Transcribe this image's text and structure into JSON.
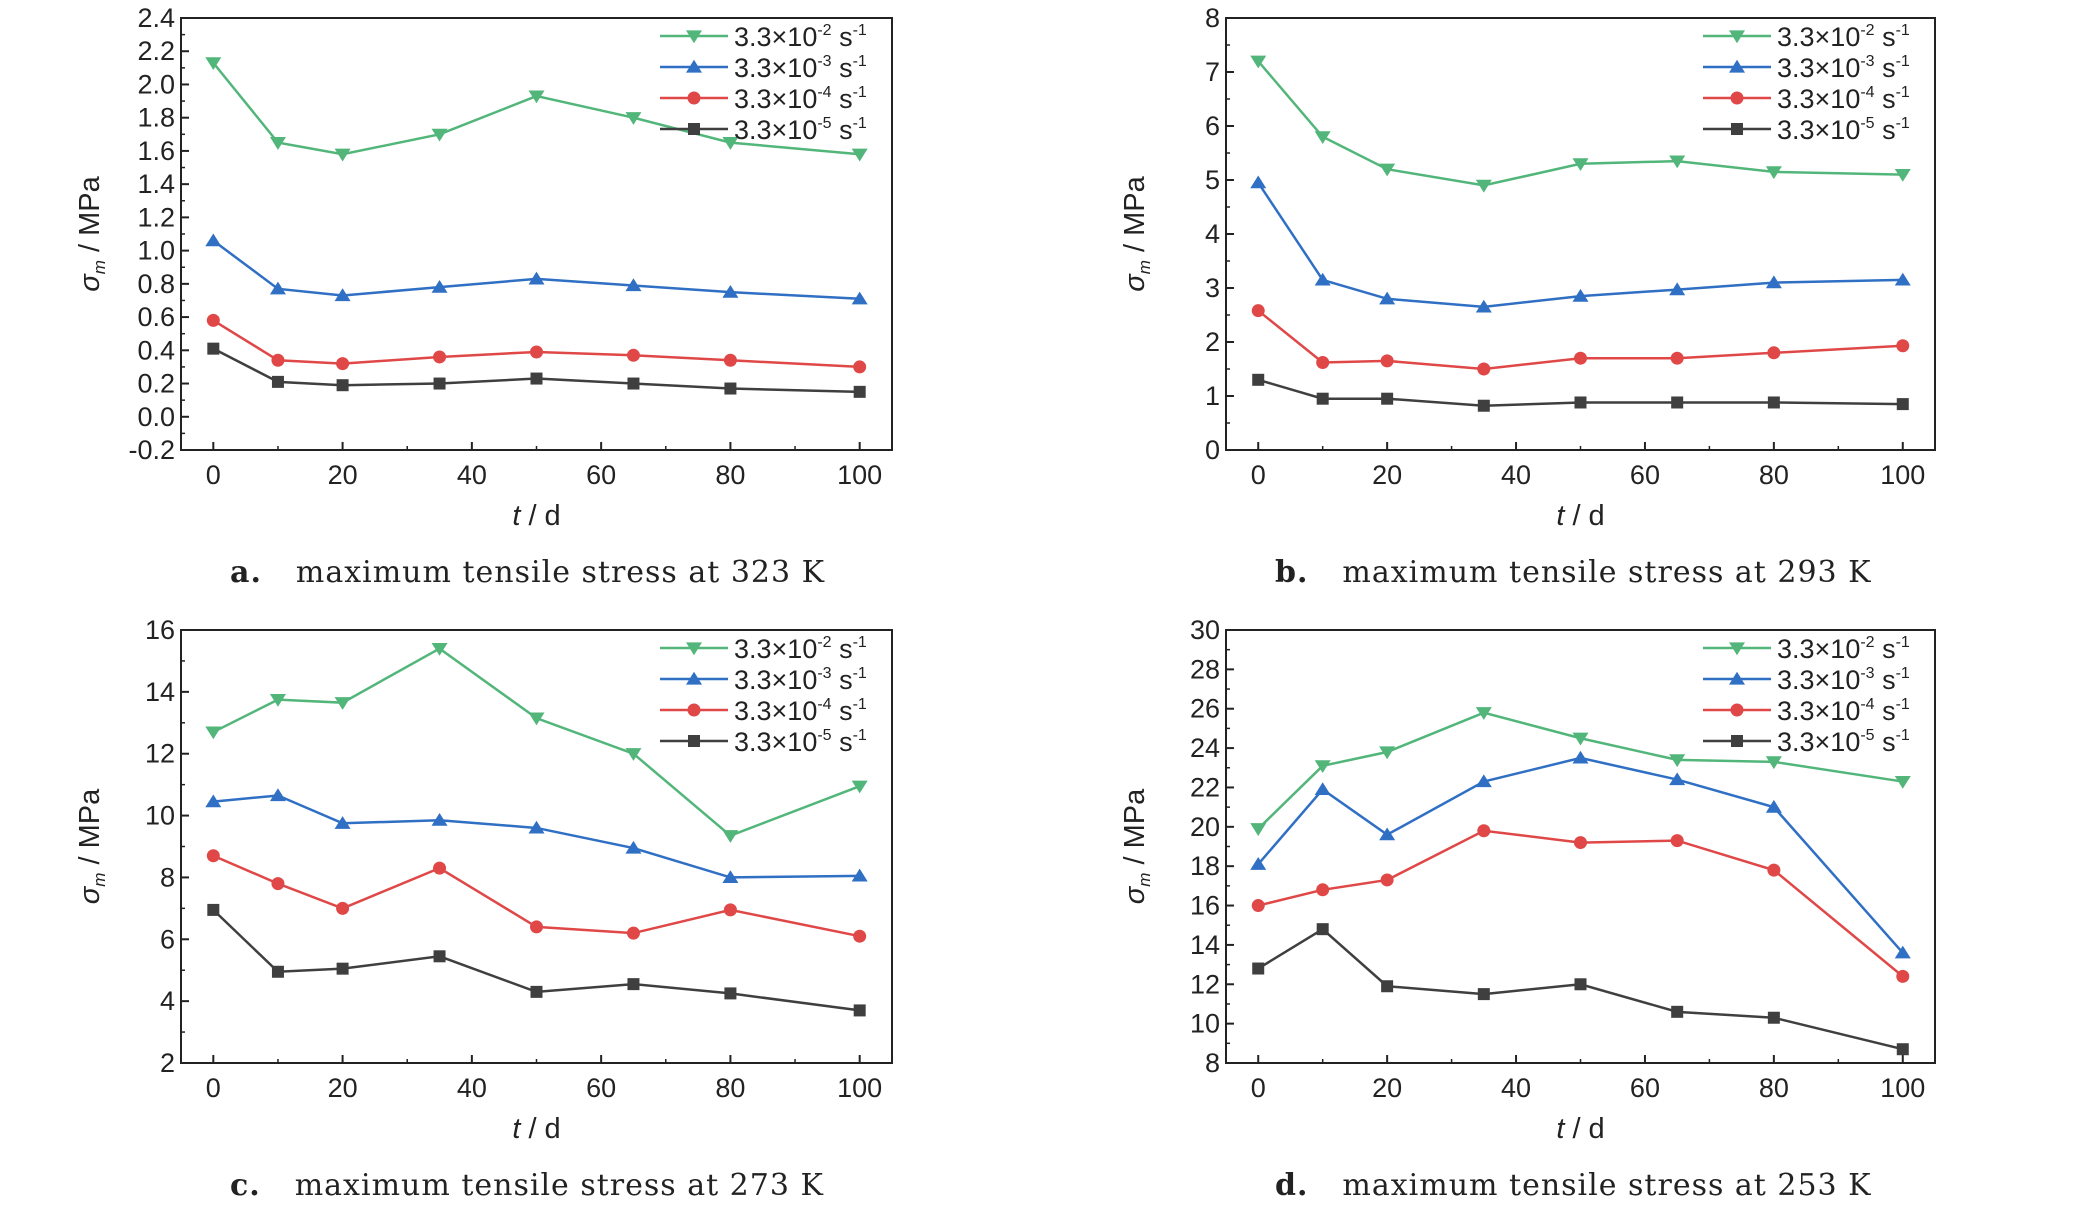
{
  "colors": {
    "green": "#52b67a",
    "blue": "#2f6fc4",
    "red": "#e04848",
    "black": "#3f3f3f",
    "axis": "#222222"
  },
  "markers": [
    "triangle-down",
    "triangle-up",
    "circle",
    "square"
  ],
  "chart_data": [
    {
      "type": "line",
      "caption_letter": "a.",
      "caption_text": "maximum tensile stress at 323 K",
      "xlabel_var": "t",
      "xlabel_unit": "/ d",
      "ylabel_var": "σ",
      "ylabel_sub": "m",
      "ylabel_unit": "/ MPa",
      "x": [
        0,
        10,
        20,
        35,
        50,
        65,
        80,
        100
      ],
      "xlim": [
        -5,
        105
      ],
      "xticks": [
        "0",
        "20",
        "40",
        "60",
        "80",
        "100"
      ],
      "ylim": [
        -0.2,
        2.4
      ],
      "yticks": [
        "-0.2",
        "0.0",
        "0.2",
        "0.4",
        "0.6",
        "0.8",
        "1.0",
        "1.2",
        "1.4",
        "1.6",
        "1.8",
        "2.0",
        "2.2",
        "2.4"
      ],
      "legend_position": "top-right",
      "series": [
        {
          "name_base": "3.3×10",
          "name_exp": "-2",
          "name_unit": " s",
          "name_unit_exp": "-1",
          "values": [
            2.13,
            1.65,
            1.58,
            1.7,
            1.93,
            1.8,
            1.65,
            1.58
          ]
        },
        {
          "name_base": "3.3×10",
          "name_exp": "-3",
          "name_unit": " s",
          "name_unit_exp": "-1",
          "values": [
            1.06,
            0.77,
            0.73,
            0.78,
            0.83,
            0.79,
            0.75,
            0.71
          ]
        },
        {
          "name_base": "3.3×10",
          "name_exp": "-4",
          "name_unit": " s",
          "name_unit_exp": "-1",
          "values": [
            0.58,
            0.34,
            0.32,
            0.36,
            0.39,
            0.37,
            0.34,
            0.3
          ]
        },
        {
          "name_base": "3.3×10",
          "name_exp": "-5",
          "name_unit": " s",
          "name_unit_exp": "-1",
          "values": [
            0.41,
            0.21,
            0.19,
            0.2,
            0.23,
            0.2,
            0.17,
            0.15
          ]
        }
      ]
    },
    {
      "type": "line",
      "caption_letter": "b.",
      "caption_text": "maximum tensile stress at 293 K",
      "xlabel_var": "t",
      "xlabel_unit": "/ d",
      "ylabel_var": "σ",
      "ylabel_sub": "m",
      "ylabel_unit": "/ MPa",
      "x": [
        0,
        10,
        20,
        35,
        50,
        65,
        80,
        100
      ],
      "xlim": [
        -5,
        105
      ],
      "xticks": [
        "0",
        "20",
        "40",
        "60",
        "80",
        "100"
      ],
      "ylim": [
        0,
        8
      ],
      "yticks": [
        "0",
        "1",
        "2",
        "3",
        "4",
        "5",
        "6",
        "7",
        "8"
      ],
      "legend_position": "top-right",
      "series": [
        {
          "name_base": "3.3×10",
          "name_exp": "-2",
          "name_unit": " s",
          "name_unit_exp": "-1",
          "values": [
            7.2,
            5.8,
            5.2,
            4.9,
            5.3,
            5.35,
            5.15,
            5.1
          ]
        },
        {
          "name_base": "3.3×10",
          "name_exp": "-3",
          "name_unit": " s",
          "name_unit_exp": "-1",
          "values": [
            4.95,
            3.15,
            2.8,
            2.65,
            2.85,
            2.97,
            3.1,
            3.15
          ]
        },
        {
          "name_base": "3.3×10",
          "name_exp": "-4",
          "name_unit": " s",
          "name_unit_exp": "-1",
          "values": [
            2.58,
            1.62,
            1.65,
            1.5,
            1.7,
            1.7,
            1.8,
            1.93
          ]
        },
        {
          "name_base": "3.3×10",
          "name_exp": "-5",
          "name_unit": " s",
          "name_unit_exp": "-1",
          "values": [
            1.3,
            0.95,
            0.95,
            0.82,
            0.88,
            0.88,
            0.88,
            0.85
          ]
        }
      ]
    },
    {
      "type": "line",
      "caption_letter": "c.",
      "caption_text": "maximum tensile stress at 273 K",
      "xlabel_var": "t",
      "xlabel_unit": "/ d",
      "ylabel_var": "σ",
      "ylabel_sub": "m",
      "ylabel_unit": "/ MPa",
      "x": [
        0,
        10,
        20,
        35,
        50,
        65,
        80,
        100
      ],
      "xlim": [
        -5,
        105
      ],
      "xticks": [
        "0",
        "20",
        "40",
        "60",
        "80",
        "100"
      ],
      "ylim": [
        2,
        16
      ],
      "yticks": [
        "2",
        "4",
        "6",
        "8",
        "10",
        "12",
        "14",
        "16"
      ],
      "legend_position": "top-right",
      "series": [
        {
          "name_base": "3.3×10",
          "name_exp": "-2",
          "name_unit": " s",
          "name_unit_exp": "-1",
          "values": [
            12.7,
            13.75,
            13.65,
            15.4,
            13.15,
            12.0,
            9.35,
            10.95
          ]
        },
        {
          "name_base": "3.3×10",
          "name_exp": "-3",
          "name_unit": " s",
          "name_unit_exp": "-1",
          "values": [
            10.45,
            10.65,
            9.75,
            9.85,
            9.6,
            8.95,
            8.0,
            8.05
          ]
        },
        {
          "name_base": "3.3×10",
          "name_exp": "-4",
          "name_unit": " s",
          "name_unit_exp": "-1",
          "values": [
            8.7,
            7.8,
            7.0,
            8.3,
            6.4,
            6.2,
            6.95,
            6.1
          ]
        },
        {
          "name_base": "3.3×10",
          "name_exp": "-5",
          "name_unit": " s",
          "name_unit_exp": "-1",
          "values": [
            6.95,
            4.95,
            5.05,
            5.45,
            4.3,
            4.55,
            4.25,
            3.7
          ]
        }
      ]
    },
    {
      "type": "line",
      "caption_letter": "d.",
      "caption_text": "maximum tensile stress at 253 K",
      "xlabel_var": "t",
      "xlabel_unit": "/ d",
      "ylabel_var": "σ",
      "ylabel_sub": "m",
      "ylabel_unit": "/ MPa",
      "x": [
        0,
        10,
        20,
        35,
        50,
        65,
        80,
        100
      ],
      "xlim": [
        -5,
        105
      ],
      "xticks": [
        "0",
        "20",
        "40",
        "60",
        "80",
        "100"
      ],
      "ylim": [
        8,
        30
      ],
      "yticks": [
        "8",
        "10",
        "12",
        "14",
        "16",
        "18",
        "20",
        "22",
        "24",
        "26",
        "28",
        "30"
      ],
      "legend_position": "top-right",
      "series": [
        {
          "name_base": "3.3×10",
          "name_exp": "-2",
          "name_unit": " s",
          "name_unit_exp": "-1",
          "values": [
            19.9,
            23.1,
            23.8,
            25.8,
            24.5,
            23.4,
            23.3,
            22.3
          ]
        },
        {
          "name_base": "3.3×10",
          "name_exp": "-3",
          "name_unit": " s",
          "name_unit_exp": "-1",
          "values": [
            18.1,
            21.9,
            19.6,
            22.3,
            23.5,
            22.4,
            21.0,
            13.6
          ]
        },
        {
          "name_base": "3.3×10",
          "name_exp": "-4",
          "name_unit": " s",
          "name_unit_exp": "-1",
          "values": [
            16.0,
            16.8,
            17.3,
            19.8,
            19.2,
            19.3,
            17.8,
            12.4
          ]
        },
        {
          "name_base": "3.3×10",
          "name_exp": "-5",
          "name_unit": " s",
          "name_unit_exp": "-1",
          "values": [
            12.8,
            14.8,
            11.9,
            11.5,
            12.0,
            10.6,
            10.3,
            8.7
          ]
        }
      ]
    }
  ]
}
